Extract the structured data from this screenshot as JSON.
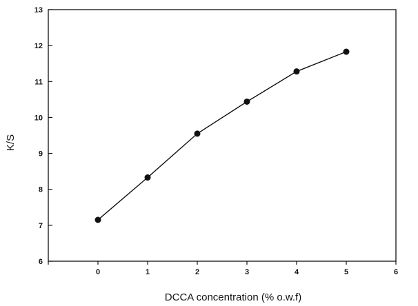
{
  "chart_data": {
    "type": "line",
    "title": "",
    "xlabel": "DCCA concentration (% o.w.f)",
    "ylabel": "K/S",
    "xlim": [
      -1,
      6
    ],
    "ylim": [
      6,
      13
    ],
    "x_ticks": [
      0,
      1,
      2,
      3,
      4,
      5,
      6
    ],
    "y_ticks": [
      6,
      7,
      8,
      9,
      10,
      11,
      12,
      13
    ],
    "grid": false,
    "legend": "none",
    "series": [
      {
        "x": [
          0,
          1,
          2,
          3,
          4,
          5
        ],
        "values": [
          7.15,
          8.33,
          9.55,
          10.44,
          11.28,
          11.83
        ],
        "marker": "filled-circle",
        "color": "#111111"
      }
    ]
  }
}
